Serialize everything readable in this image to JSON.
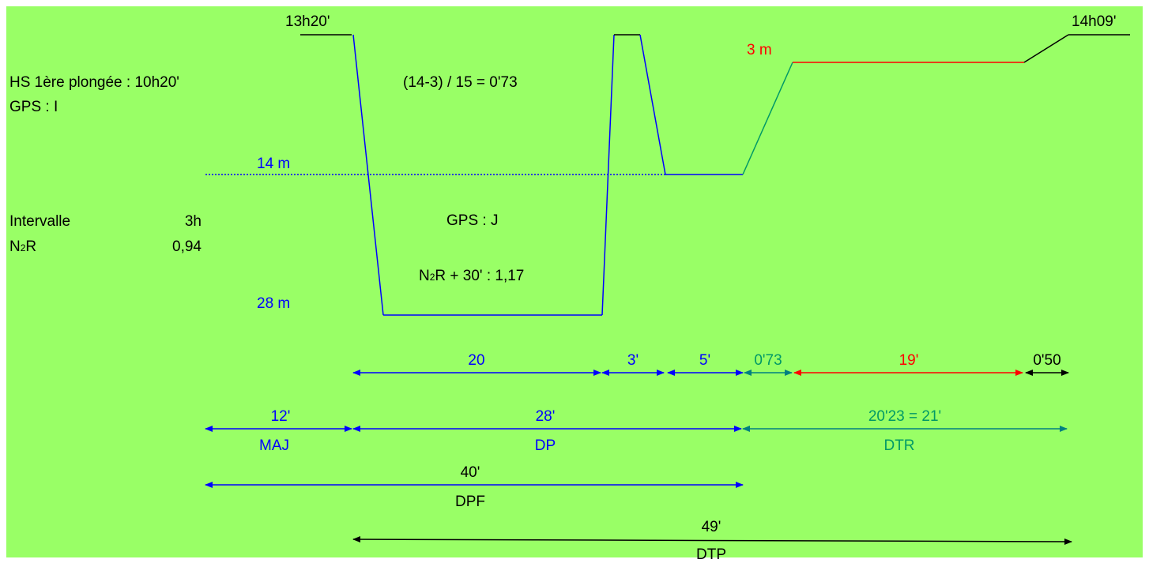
{
  "colors": {
    "background": "#99FF66",
    "blue": "#0000FF",
    "teal": "#008080",
    "red": "#FF0000",
    "green": "#009966",
    "black": "#000000"
  },
  "times": {
    "start": "13h20'",
    "end": "14h09'"
  },
  "info": {
    "hs_first_dive": "HS 1ère plongée : 10h20'",
    "gps_initial": "GPS : I",
    "interval_label": "Intervalle",
    "interval_value": "3h",
    "n2r_label": "N2R",
    "n2r_value": "0,94",
    "n2r_prefix": "N",
    "n2r_sub": "2",
    "n2r_suffix": "R"
  },
  "dive": {
    "formula": "(14-3) / 15 = 0'73",
    "gps_after": "GPS : J",
    "n2r_plus_30_prefix": "N",
    "n2r_plus_30_sub": "2",
    "n2r_plus_30_suffix": "R + 30' : 1,17",
    "depth_3m": "3 m",
    "depth_14m": "14 m",
    "depth_28m": "28 m"
  },
  "segments": {
    "s20": "20",
    "s3": "3'",
    "s5": "5'",
    "s073": "0'73",
    "s19": "19'",
    "s050": "0'50"
  },
  "totals": {
    "maj_value": "12'",
    "maj_label": "MAJ",
    "dp_value": "28'",
    "dp_label": "DP",
    "dtr_value": "20'23 = 21'",
    "dtr_label": "DTR",
    "dpf_value": "40'",
    "dpf_label": "DPF",
    "dtp_value": "49'",
    "dtp_label": "DTP"
  }
}
